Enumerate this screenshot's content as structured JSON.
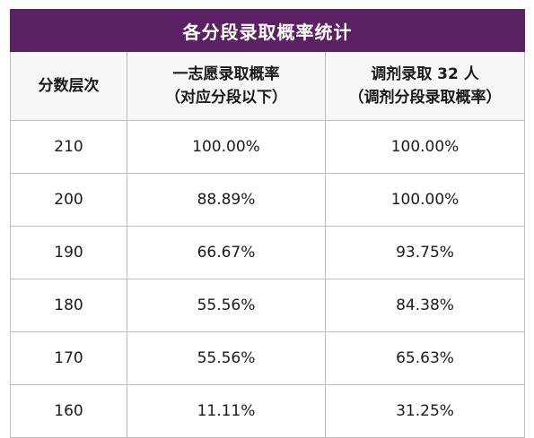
{
  "table": {
    "title": "各分段录取概率统计",
    "headers": {
      "col1": "分数层次",
      "col2_line1": "一志愿录取概率",
      "col2_line2": "（对应分段以下）",
      "col3_line1": "调剂录取 32 人",
      "col3_line2": "（调剂分段录取概率）"
    },
    "rows": [
      {
        "score": "210",
        "first_choice": "100.00%",
        "adjust": "100.00%"
      },
      {
        "score": "200",
        "first_choice": "88.89%",
        "adjust": "100.00%"
      },
      {
        "score": "190",
        "first_choice": "66.67%",
        "adjust": "93.75%"
      },
      {
        "score": "180",
        "first_choice": "55.56%",
        "adjust": "84.38%"
      },
      {
        "score": "170",
        "first_choice": "55.56%",
        "adjust": "65.63%"
      },
      {
        "score": "160",
        "first_choice": "11.11%",
        "adjust": "31.25%"
      }
    ]
  },
  "colors": {
    "title_bg": "#5b2263",
    "title_fg": "#ffffff",
    "header_bg": "#f7f7f7",
    "border": "#bdbdbd"
  }
}
